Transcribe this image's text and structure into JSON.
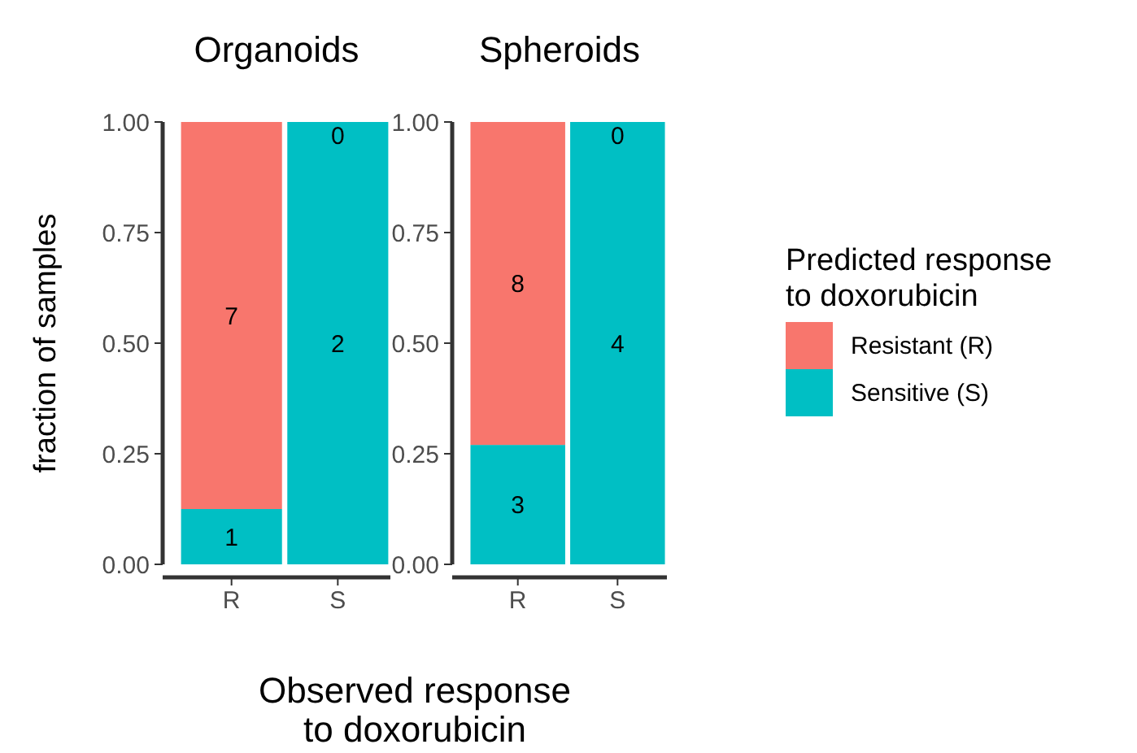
{
  "chart_data": [
    {
      "type": "bar",
      "title": "Organoids",
      "stacked": true,
      "categories": [
        "R",
        "S"
      ],
      "ylabel": "fraction of samples",
      "xlabel": "Observed response\nto doxorubicin",
      "ylim": [
        0,
        1
      ],
      "yticks": [
        {
          "value": 0,
          "label": "0.00"
        },
        {
          "value": 0.25,
          "label": "0.25"
        },
        {
          "value": 0.5,
          "label": "0.50"
        },
        {
          "value": 0.75,
          "label": "0.75"
        },
        {
          "value": 1,
          "label": "1.00"
        }
      ],
      "grid": false,
      "legend": false,
      "series": [
        {
          "color": "#00bfc4",
          "values": [
            0.125,
            1
          ]
        },
        {
          "color": "#f8766d",
          "values": [
            0.875,
            0
          ]
        }
      ],
      "annotations": [
        "1",
        "2",
        "7",
        "0"
      ]
    },
    {
      "type": "bar",
      "title": "Spheroids",
      "stacked": true,
      "categories": [
        "R",
        "S"
      ],
      "ylim": [
        0,
        1
      ],
      "yticks": [
        {
          "value": 0,
          "label": "0.00"
        },
        {
          "value": 0.25,
          "label": "0.25"
        },
        {
          "value": 0.5,
          "label": "0.50"
        },
        {
          "value": 0.75,
          "label": "0.75"
        },
        {
          "value": 1,
          "label": "1.00"
        }
      ],
      "grid": false,
      "legend": "right",
      "legend_title": "Predicted response\nto doxorubicin",
      "series": [
        {
          "name": "Sensitive (S)",
          "color": "#00bfc4",
          "values": [
            0.27,
            1
          ]
        },
        {
          "name": "Resistant (R)",
          "color": "#f8766d",
          "values": [
            0.73,
            0
          ]
        }
      ],
      "annotations": [
        "3",
        "4",
        "8",
        "0"
      ]
    }
  ]
}
